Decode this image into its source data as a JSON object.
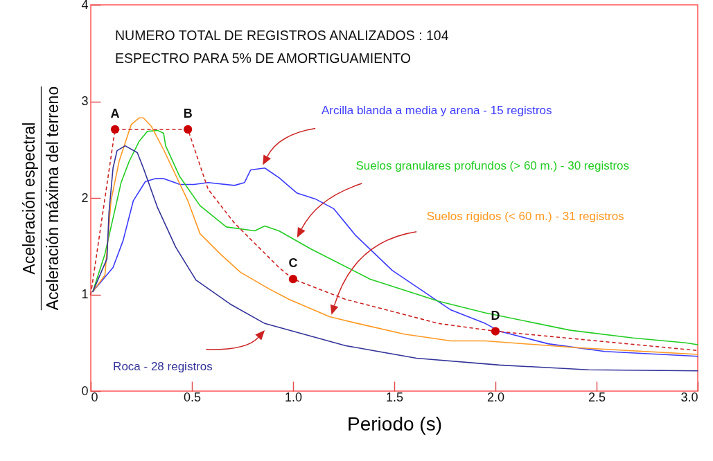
{
  "chart_data": {
    "type": "line",
    "xlabel": "Periodo (s)",
    "ylabel": "Aceleración espectral\nAceleración máxima del terreno",
    "xlim": [
      0,
      3
    ],
    "ylim": [
      0,
      4
    ],
    "xticks": [
      0,
      0.5,
      {
        "value": 1,
        "label": "1.0"
      },
      1.5,
      {
        "value": 2,
        "label": "2.0"
      },
      2.5,
      {
        "value": 3,
        "label": "3.0"
      }
    ],
    "yticks": [
      0,
      1,
      2,
      3,
      4
    ],
    "grid": false,
    "marker": "none",
    "line_style": "solid",
    "series": [
      {
        "name": "Arcilla blanda a media y arena - 15 registros",
        "color": "#3b3bff",
        "x": [
          0.01,
          0.11,
          0.16,
          0.21,
          0.27,
          0.32,
          0.36,
          0.44,
          0.51,
          0.58,
          0.71,
          0.76,
          0.79,
          0.86,
          0.93,
          1.02,
          1.11,
          1.2,
          1.31,
          1.49,
          1.78,
          1.95,
          2.02,
          2.26,
          2.54,
          3.0
        ],
        "values": [
          1.03,
          1.28,
          1.56,
          1.97,
          2.17,
          2.2,
          2.2,
          2.14,
          2.14,
          2.16,
          2.13,
          2.16,
          2.29,
          2.31,
          2.21,
          2.05,
          1.99,
          1.89,
          1.61,
          1.25,
          0.84,
          0.7,
          0.62,
          0.49,
          0.41,
          0.36
        ]
      },
      {
        "name": "Suelos granulares profundos (> 60 m.) - 30 registros",
        "color": "#22cc22",
        "x": [
          0.01,
          0.07,
          0.15,
          0.19,
          0.24,
          0.28,
          0.33,
          0.36,
          0.37,
          0.44,
          0.54,
          0.67,
          0.81,
          0.86,
          0.93,
          1.09,
          1.38,
          1.72,
          1.95,
          2.37,
          2.68,
          2.94,
          3.0
        ],
        "values": [
          1.03,
          1.42,
          2.16,
          2.38,
          2.59,
          2.69,
          2.7,
          2.67,
          2.54,
          2.22,
          1.92,
          1.7,
          1.66,
          1.71,
          1.66,
          1.47,
          1.16,
          0.93,
          0.81,
          0.63,
          0.55,
          0.5,
          0.48
        ]
      },
      {
        "name": "Suelos rígidos (< 60 m.) - 31 registros",
        "color": "#ff9922",
        "x": [
          0.01,
          0.07,
          0.1,
          0.14,
          0.2,
          0.24,
          0.26,
          0.3,
          0.36,
          0.48,
          0.54,
          0.64,
          0.74,
          0.88,
          0.98,
          1.18,
          1.32,
          1.55,
          1.78,
          1.95,
          2.4,
          3.0
        ],
        "values": [
          1.03,
          1.2,
          1.97,
          2.38,
          2.76,
          2.83,
          2.83,
          2.74,
          2.5,
          1.97,
          1.63,
          1.42,
          1.23,
          1.06,
          0.95,
          0.77,
          0.7,
          0.59,
          0.52,
          0.52,
          0.45,
          0.38
        ]
      },
      {
        "name": "Roca - 28 registros",
        "color": "#333399",
        "x": [
          0.01,
          0.08,
          0.09,
          0.11,
          0.13,
          0.17,
          0.23,
          0.26,
          0.33,
          0.42,
          0.52,
          0.69,
          0.86,
          1.26,
          1.61,
          2.02,
          2.46,
          3.0
        ],
        "values": [
          1.03,
          1.37,
          1.85,
          2.31,
          2.49,
          2.54,
          2.47,
          2.31,
          1.9,
          1.49,
          1.15,
          0.9,
          0.7,
          0.47,
          0.34,
          0.27,
          0.22,
          0.21
        ]
      },
      {
        "type": "line",
        "line_style": "dashed",
        "color": "#cc2222",
        "x": [
          0,
          0.12,
          0.48,
          0.58,
          0.71,
          0.93,
          1.0,
          1.26,
          1.72,
          2.0,
          3.0
        ],
        "values": [
          1.0,
          2.71,
          2.71,
          2.09,
          1.74,
          1.28,
          1.16,
          0.95,
          0.7,
          0.62,
          0.42
        ]
      },
      {
        "type": "scatter",
        "marker": "circle",
        "color": "#cc0000",
        "x": [
          0.12,
          0.48,
          1.0,
          2.0
        ],
        "values": [
          2.71,
          2.71,
          1.16,
          0.62
        ]
      }
    ],
    "annotations": [
      "NUMERO TOTAL DE REGISTROS ANALIZADOS : 104",
      "ESPECTRO PARA 5% DE AMORTIGUAMIENTO",
      {
        "text": "A",
        "x": 0.12,
        "y": 2.71
      },
      {
        "text": "B",
        "x": 0.48,
        "y": 2.71
      },
      {
        "text": "C",
        "x": 1.0,
        "y": 1.16
      },
      {
        "text": "D",
        "x": 2.0,
        "y": 0.62
      }
    ]
  }
}
